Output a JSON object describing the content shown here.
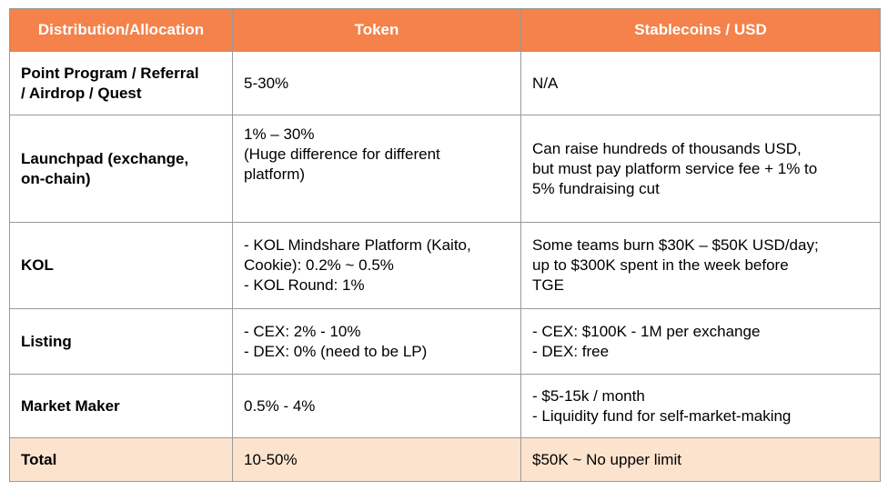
{
  "table": {
    "headers": [
      "Distribution/Allocation",
      "Token",
      "Stablecoins / USD"
    ],
    "rows": [
      {
        "category": [
          "Point Program / Referral",
          "/ Airdrop / Quest"
        ],
        "token": [
          "5-30%"
        ],
        "usd": [
          "N/A"
        ]
      },
      {
        "category": [
          "Launchpad (exchange,",
          "on-chain)"
        ],
        "token": [
          "1% – 30%",
          "(Huge difference for different",
          "platform)"
        ],
        "usd": [
          "Can raise hundreds of thousands USD,",
          "but must pay platform service fee + 1% to",
          "5% fundraising cut"
        ]
      },
      {
        "category": [
          "KOL"
        ],
        "token": [
          "- KOL Mindshare Platform (Kaito,",
          "Cookie): 0.2% ~ 0.5%",
          "- KOL Round: 1%"
        ],
        "usd": [
          "Some teams burn $30K – $50K USD/day;",
          "up to $300K spent in the week before",
          "TGE"
        ]
      },
      {
        "category": [
          "Listing"
        ],
        "token": [
          "- CEX: 2% - 10%",
          "- DEX: 0% (need to be LP)"
        ],
        "usd": [
          "- CEX: $100K - 1M per exchange",
          "- DEX: free"
        ]
      },
      {
        "category": [
          "Market Maker"
        ],
        "token": [
          "0.5% - 4%"
        ],
        "usd": [
          "- $5-15k / month",
          "- Liquidity fund for self-market-making"
        ]
      }
    ],
    "total": {
      "category": [
        "Total"
      ],
      "token": [
        "10-50%"
      ],
      "usd": [
        "$50K ~ No upper limit"
      ]
    }
  },
  "colors": {
    "header_bg": "#f4824a",
    "header_text": "#ffffff",
    "total_row_bg": "#fbe3ce",
    "border": "#9a9a9a"
  }
}
